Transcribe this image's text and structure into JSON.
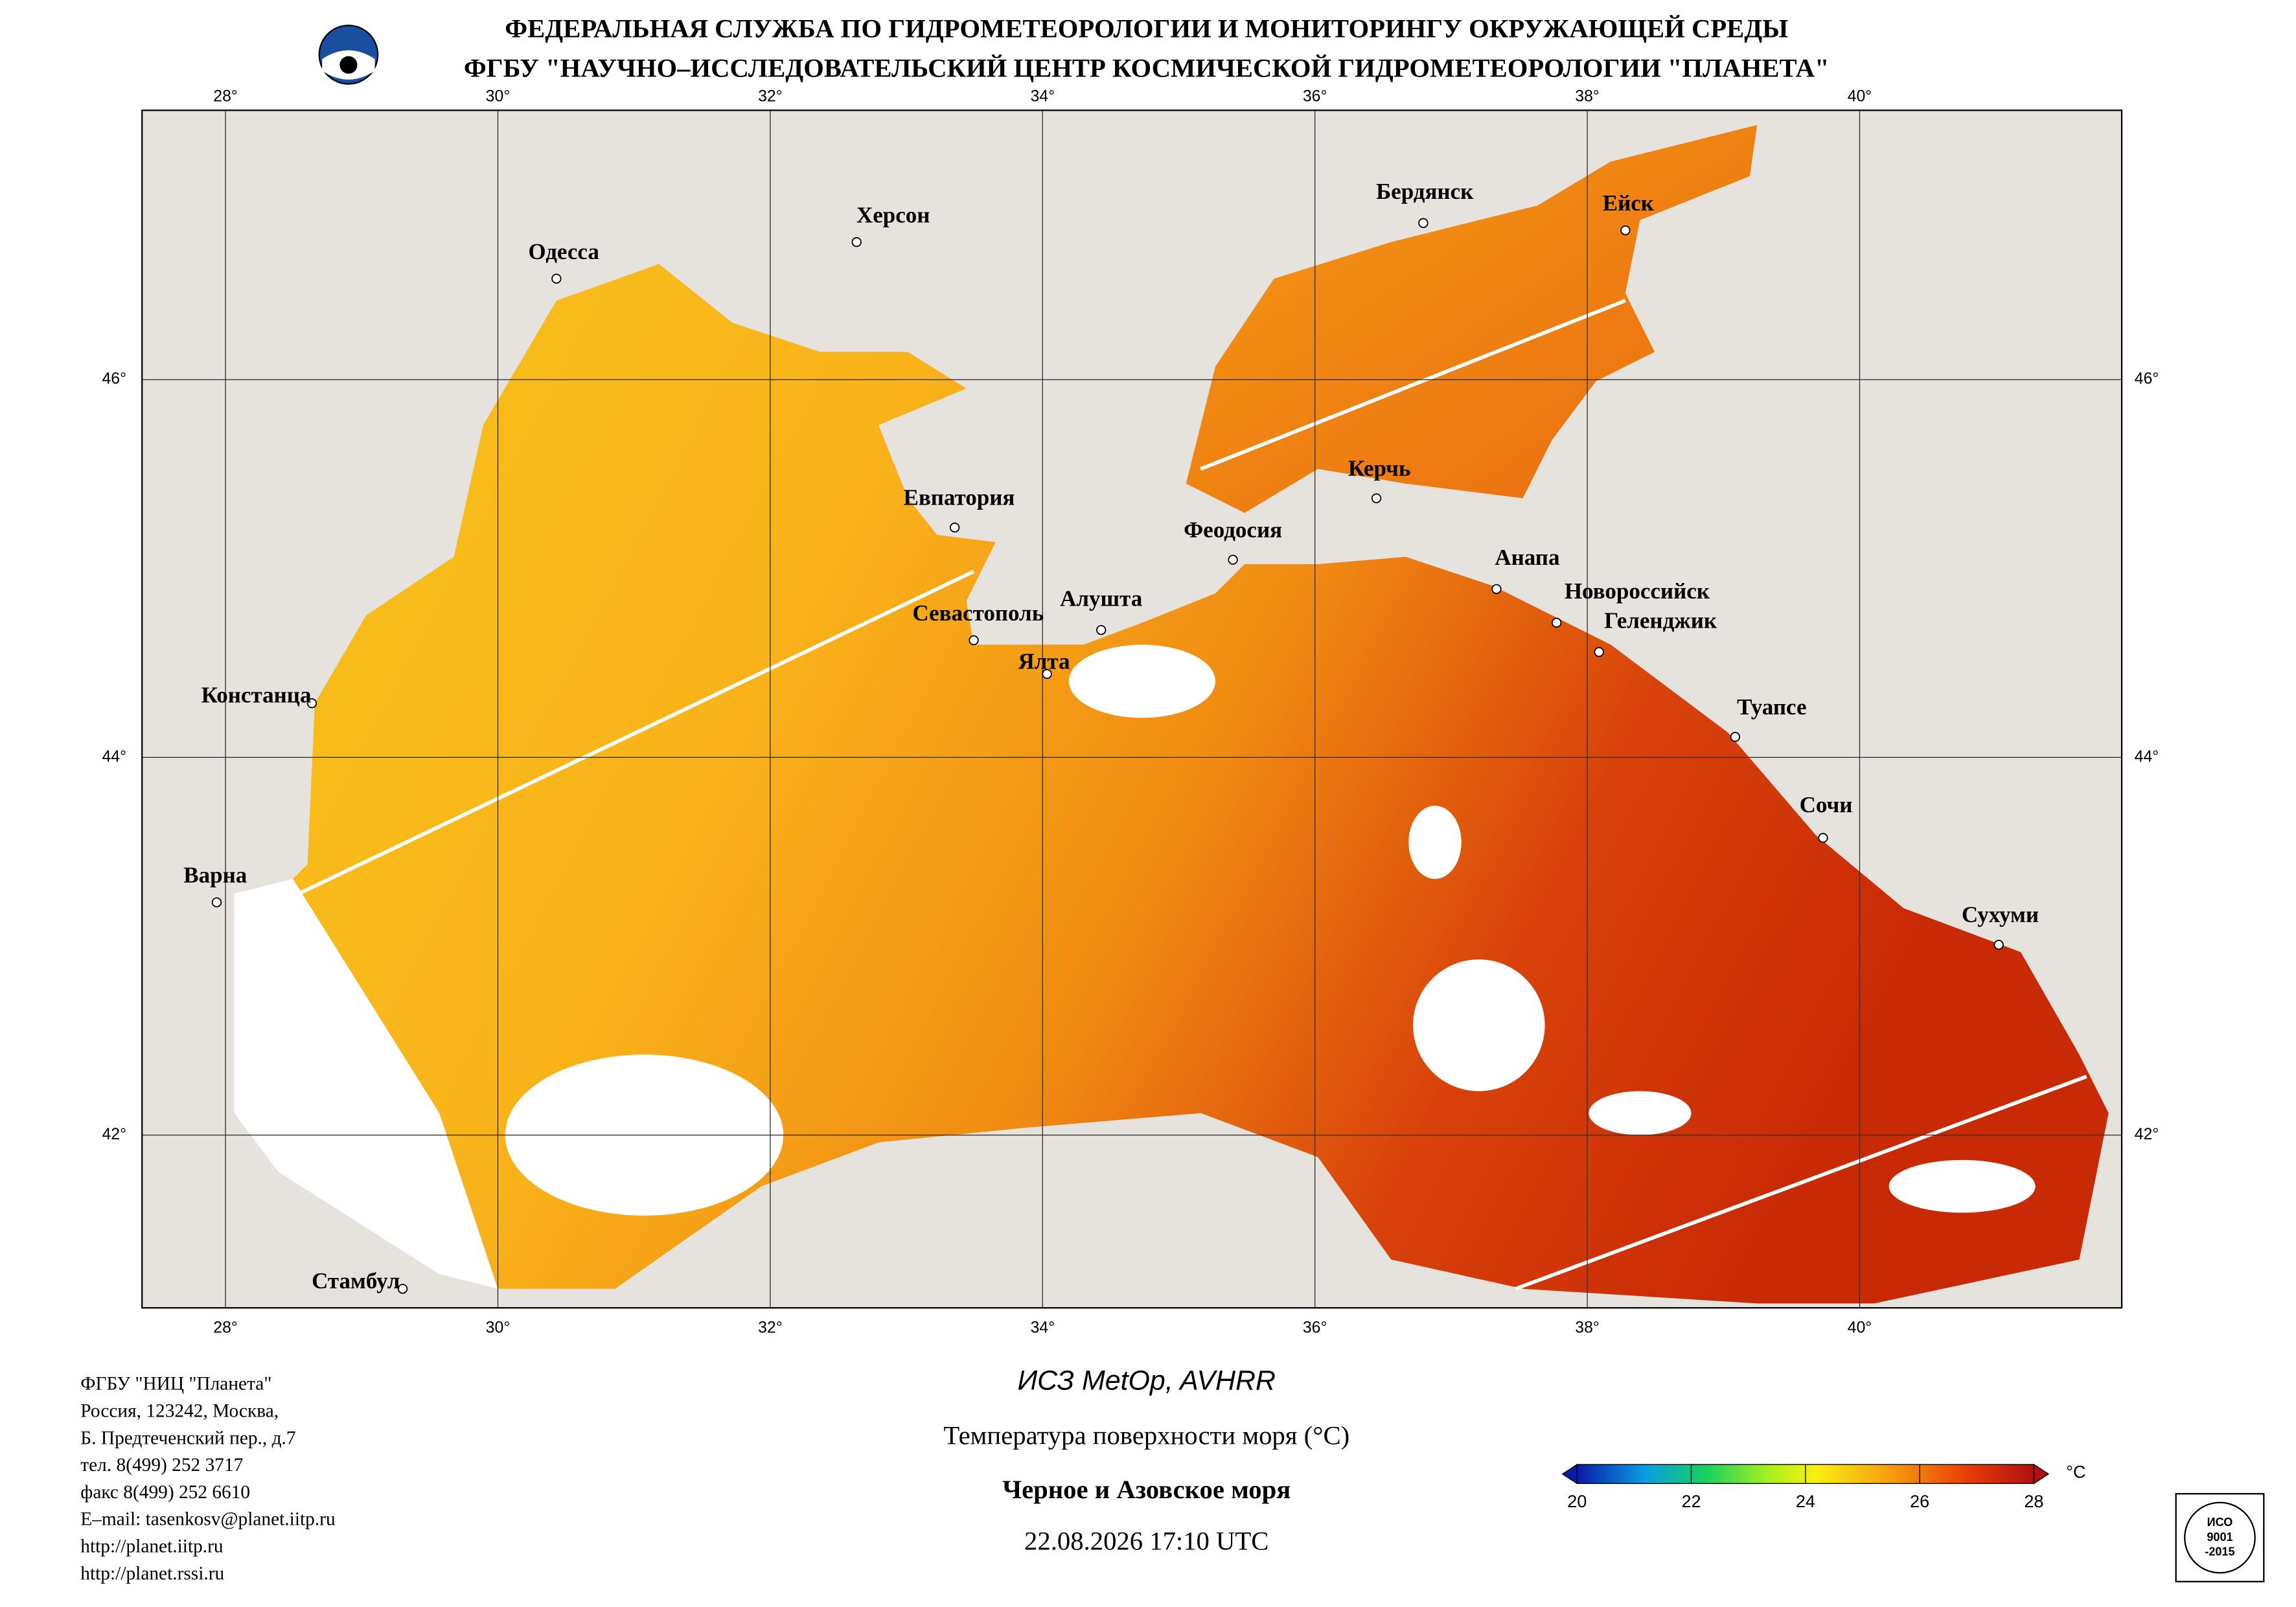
{
  "header": {
    "lines": [
      "ФЕДЕРАЛЬНАЯ СЛУЖБА ПО ГИДРОМЕТЕОРОЛОГИИ И МОНИТОРИНГУ ОКРУЖАЮЩЕЙ СРЕДЫ",
      "ФГБУ \"НАУЧНО–ИССЛЕДОВАТЕЛЬСКИЙ ЦЕНТР КОСМИЧЕСКОЙ ГИДРОМЕТЕОРОЛОГИИ \"ПЛАНЕТА\""
    ]
  },
  "map": {
    "lon_ticks": [
      {
        "value": 28,
        "label": "28°"
      },
      {
        "value": 30,
        "label": "30°"
      },
      {
        "value": 32,
        "label": "32°"
      },
      {
        "value": 34,
        "label": "34°"
      },
      {
        "value": 36,
        "label": "36°"
      },
      {
        "value": 38,
        "label": "38°"
      },
      {
        "value": 40,
        "label": "40°"
      }
    ],
    "lat_ticks": [
      {
        "value": 42,
        "label": "42°"
      },
      {
        "value": 44,
        "label": "44°"
      },
      {
        "value": 46,
        "label": "46°"
      }
    ],
    "cities": [
      "Херсон",
      "Одесса",
      "Бердянск",
      "Ейск",
      "Евпатория",
      "Керчь",
      "Феодосия",
      "Анапа",
      "Новороссийск",
      "Геленджик",
      "Севастополь",
      "Алушта",
      "Ялта",
      "Констанца",
      "Туапсе",
      "Сочи",
      "Варна",
      "Сухуми",
      "Стамбул"
    ]
  },
  "footer": {
    "address": [
      "ФГБУ \"НИЦ \"Планета\"",
      "Россия, 123242, Москва,",
      "Б. Предтеченский пер., д.7",
      "тел. 8(499) 252 3717",
      "факс 8(499) 252 6610",
      "E–mail: tasenkosv@planet.iitp.ru",
      "http://planet.iitp.ru",
      "http://planet.rssi.ru"
    ],
    "satellite": "ИСЗ MetOp, AVHRR",
    "product": "Температура поверхности моря (°C)",
    "region": "Черное и Азовское моря",
    "datetime": "22.08.2026 17:10 UTC",
    "iso": [
      "ИСО",
      "9001",
      "-2015"
    ]
  },
  "colorbar": {
    "lim": [
      20,
      28
    ],
    "ticks": [
      20,
      22,
      24,
      26,
      28
    ],
    "unit": "°C"
  }
}
